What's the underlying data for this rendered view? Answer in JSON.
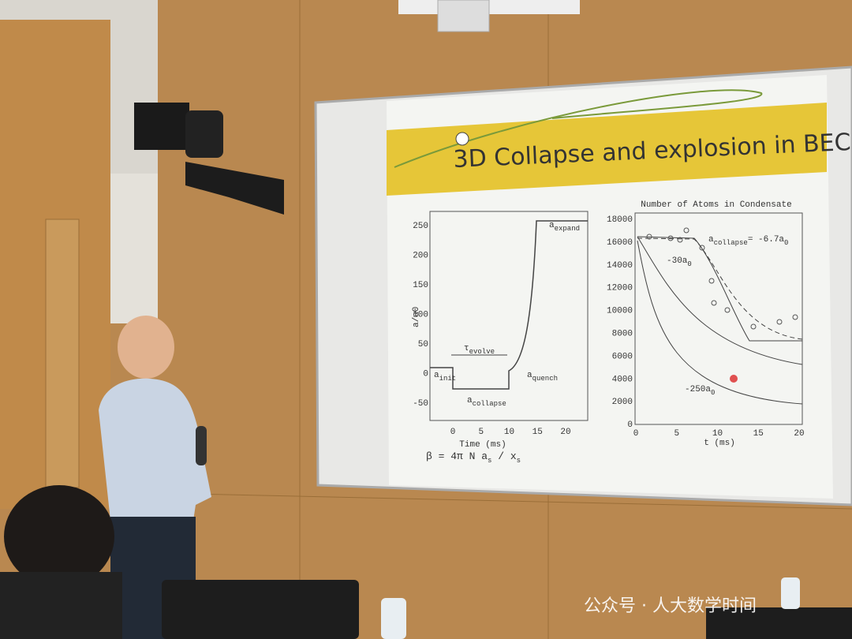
{
  "slide": {
    "title": "3D Collapse and explosion in BEC",
    "left_plot": {
      "yticks": [
        250,
        200,
        150,
        100,
        50,
        0,
        -50
      ],
      "xticks": [
        0,
        5,
        10,
        15,
        20
      ],
      "x_label": "Time  (ms)",
      "y_label": "a/a0",
      "annotations": [
        [
          {
            "t": "a"
          },
          {
            "sub": "expand"
          }
        ],
        [
          {
            "t": "τ"
          },
          {
            "sub": "evolve"
          }
        ],
        [
          {
            "t": "a"
          },
          {
            "sub": "init"
          }
        ],
        [
          {
            "t": "a"
          },
          {
            "sub": "quench"
          }
        ],
        [
          {
            "t": "a"
          },
          {
            "sub": "collapse"
          }
        ]
      ]
    },
    "right_plot": {
      "title": "Number of Atoms in Condensate",
      "yticks": [
        18000,
        16000,
        14000,
        12000,
        10000,
        8000,
        6000,
        4000,
        2000,
        0
      ],
      "xticks": [
        0,
        5,
        10,
        15,
        20
      ],
      "x_label": "t  (ms)",
      "annotations": [
        [
          {
            "t": "a"
          },
          {
            "sub": "collapse"
          },
          {
            "t": "= -6.7a"
          },
          {
            "sub": "0"
          }
        ],
        [
          {
            "t": "-30a"
          },
          {
            "sub": "0"
          }
        ],
        [
          {
            "t": "-250a"
          },
          {
            "sub": "0"
          }
        ]
      ]
    },
    "formula": [
      {
        "t": "β = 4π N a"
      },
      {
        "sub": "s"
      },
      {
        "t": " / x"
      },
      {
        "sub": "s"
      }
    ]
  },
  "watermark": "公众号 · 人大数学时间"
}
